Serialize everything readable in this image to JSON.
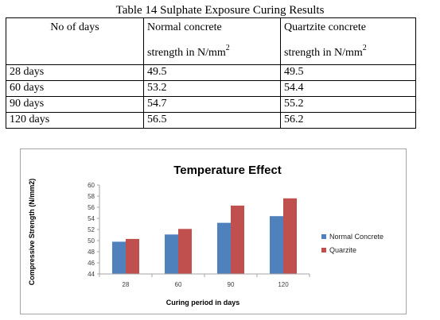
{
  "caption": "Table 14  Sulphate Exposure Curing Results",
  "table": {
    "headers": [
      {
        "line1": "No of days",
        "line2": "",
        "sup": ""
      },
      {
        "line1": "Normal concrete",
        "line2": "strength in N/mm",
        "sup": "2"
      },
      {
        "line1": "Quartzite concrete",
        "line2": "strength in N/mm",
        "sup": "2"
      }
    ],
    "rows": [
      [
        "28 days",
        "49.5",
        "49.5"
      ],
      [
        "60 days",
        "53.2",
        "54.4"
      ],
      [
        "90 days",
        "54.7",
        "55.2"
      ],
      [
        "120 days",
        "56.5",
        "56.2"
      ]
    ]
  },
  "chart_data": {
    "type": "bar",
    "title": "Temperature Effect",
    "xlabel": "Curing period in days",
    "ylabel": "Compressive Strength (N/mm2)",
    "categories": [
      "28",
      "60",
      "90",
      "120"
    ],
    "ylim": [
      44,
      60
    ],
    "yticks": [
      44,
      46,
      48,
      50,
      52,
      54,
      56,
      58,
      60
    ],
    "grid": false,
    "legend_position": "right",
    "series": [
      {
        "name": "Normal Concrete",
        "color": "#4f81bd",
        "values": [
          49.8,
          51.1,
          53.2,
          54.4
        ]
      },
      {
        "name": "Quarzite",
        "color": "#c0504d",
        "values": [
          50.3,
          52.1,
          56.3,
          57.6
        ]
      }
    ]
  }
}
